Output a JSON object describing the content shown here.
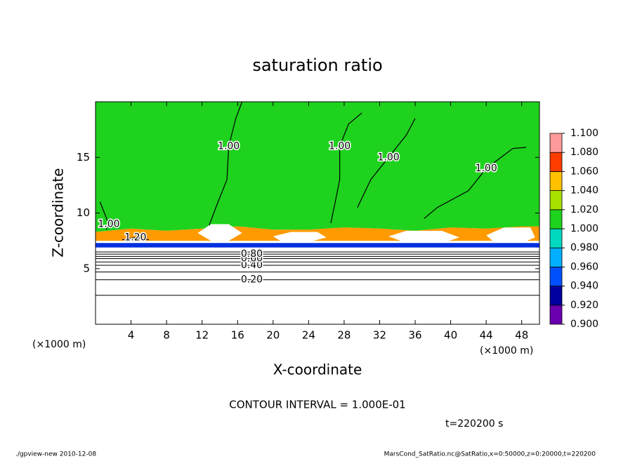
{
  "chart_data": {
    "type": "contour",
    "title": "saturation ratio",
    "xlabel": "X-coordinate",
    "ylabel": "Z-coordinate",
    "x_unit": "(×1000 m)",
    "contour_note": "CONTOUR INTERVAL = 1.000E-01",
    "time_note": "t=220200 s",
    "footer_left": "./gpview-new  2010-12-08",
    "footer_right": "MarsCond_SatRatio.nc@SatRatio,x=0:50000,z=0:20000,t=220200",
    "xlim": [
      0,
      50
    ],
    "ylim": [
      0,
      20
    ],
    "xticks": [
      4,
      8,
      12,
      16,
      20,
      24,
      28,
      32,
      36,
      40,
      44,
      48
    ],
    "yticks": [
      5,
      10,
      15
    ],
    "regions": [
      {
        "color": "#1ed21e",
        "x": [
          0,
          50,
          50,
          44,
          40,
          36,
          32,
          28,
          24,
          20,
          16,
          12,
          8,
          4,
          0
        ],
        "y": [
          20,
          20,
          8.8,
          8.6,
          8.7,
          8.4,
          8.6,
          8.7,
          8.5,
          8.5,
          8.8,
          8.6,
          8.4,
          8.6,
          8.3
        ]
      },
      {
        "color": "#ff9a00",
        "x": [
          0,
          4,
          8,
          12,
          16,
          20,
          24,
          28,
          32,
          36,
          40,
          44,
          48,
          50,
          50,
          0
        ],
        "y": [
          8.3,
          8.6,
          8.4,
          8.6,
          8.8,
          8.5,
          8.5,
          8.7,
          8.6,
          8.4,
          8.7,
          8.6,
          8.8,
          8.8,
          7.5,
          7.5
        ]
      },
      {
        "color": "#ffffff",
        "x": [
          11.5,
          13,
          15,
          16.5,
          15,
          13
        ],
        "y": [
          8.2,
          9.0,
          9.0,
          8.2,
          7.5,
          7.5
        ]
      },
      {
        "color": "#ffffff",
        "x": [
          20,
          22,
          25,
          26,
          24,
          21
        ],
        "y": [
          7.9,
          8.3,
          8.3,
          7.8,
          7.4,
          7.4
        ]
      },
      {
        "color": "#ffffff",
        "x": [
          33,
          35,
          39,
          41,
          39,
          35
        ],
        "y": [
          7.9,
          8.4,
          8.4,
          7.8,
          7.3,
          7.3
        ]
      },
      {
        "color": "#ffffff",
        "x": [
          44,
          46,
          49,
          49.5,
          48,
          45
        ],
        "y": [
          8.0,
          8.7,
          8.7,
          7.8,
          7.3,
          7.3
        ]
      },
      {
        "color": "#0030e0",
        "x": [
          0,
          50,
          50,
          0
        ],
        "y": [
          7.3,
          7.3,
          6.9,
          6.9
        ]
      }
    ],
    "level_lines": [
      {
        "level": 0.1,
        "z": 2.6
      },
      {
        "level": 0.2,
        "z": 4.0,
        "label": "0.20"
      },
      {
        "level": 0.3,
        "z": 4.7
      },
      {
        "level": 0.4,
        "z": 5.3,
        "label": "0.40"
      },
      {
        "level": 0.5,
        "z": 5.6
      },
      {
        "level": 0.6,
        "z": 5.9,
        "label": "0.60"
      },
      {
        "level": 0.7,
        "z": 6.1
      },
      {
        "level": 0.8,
        "z": 6.3,
        "label": "0.80"
      },
      {
        "level": 0.9,
        "z": 6.5
      }
    ],
    "label_x": 17.6,
    "contours": [
      {
        "label": "1.00",
        "x": [
          12.8,
          13.8,
          14.8,
          15,
          15.8,
          16.5
        ],
        "y": [
          8.9,
          11,
          13,
          16,
          18.5,
          20
        ]
      },
      {
        "label": "1.00",
        "x": [
          26.5,
          27,
          27.5,
          27.5,
          28.5,
          30
        ],
        "y": [
          9.1,
          11,
          13,
          16,
          18,
          19
        ]
      },
      {
        "label": "1.00",
        "x": [
          29.5,
          31,
          33,
          35,
          36
        ],
        "y": [
          10.5,
          13,
          15,
          17,
          18.5
        ]
      },
      {
        "label": "1.00",
        "x": [
          37,
          38.5,
          42,
          44,
          47,
          48.5
        ],
        "y": [
          9.5,
          10.5,
          12,
          14,
          15.8,
          15.9
        ]
      },
      {
        "label": "1.00",
        "x": [
          0.5,
          1,
          1.5,
          1.2
        ],
        "y": [
          11,
          10,
          9,
          8.5
        ]
      },
      {
        "label": "1.20",
        "x": [
          3,
          4.5,
          6
        ],
        "y": [
          7.6,
          7.8,
          7.6
        ]
      }
    ],
    "colorbar": {
      "levels": [
        {
          "value": 0.9,
          "label": "0.900"
        },
        {
          "value": 0.92,
          "label": "0.920"
        },
        {
          "value": 0.94,
          "label": "0.940"
        },
        {
          "value": 0.96,
          "label": "0.960"
        },
        {
          "value": 0.98,
          "label": "0.980"
        },
        {
          "value": 1.0,
          "label": "1.000"
        },
        {
          "value": 1.02,
          "label": "1.020"
        },
        {
          "value": 1.04,
          "label": "1.040"
        },
        {
          "value": 1.06,
          "label": "1.060"
        },
        {
          "value": 1.08,
          "label": "1.080"
        },
        {
          "value": 1.1,
          "label": "1.100"
        }
      ],
      "colors": [
        "#6a00b0",
        "#0000a0",
        "#0050ff",
        "#00b0ff",
        "#00d8c0",
        "#1ed21e",
        "#a8e000",
        "#ffc000",
        "#ff3c00",
        "#ff9a9a"
      ]
    }
  }
}
